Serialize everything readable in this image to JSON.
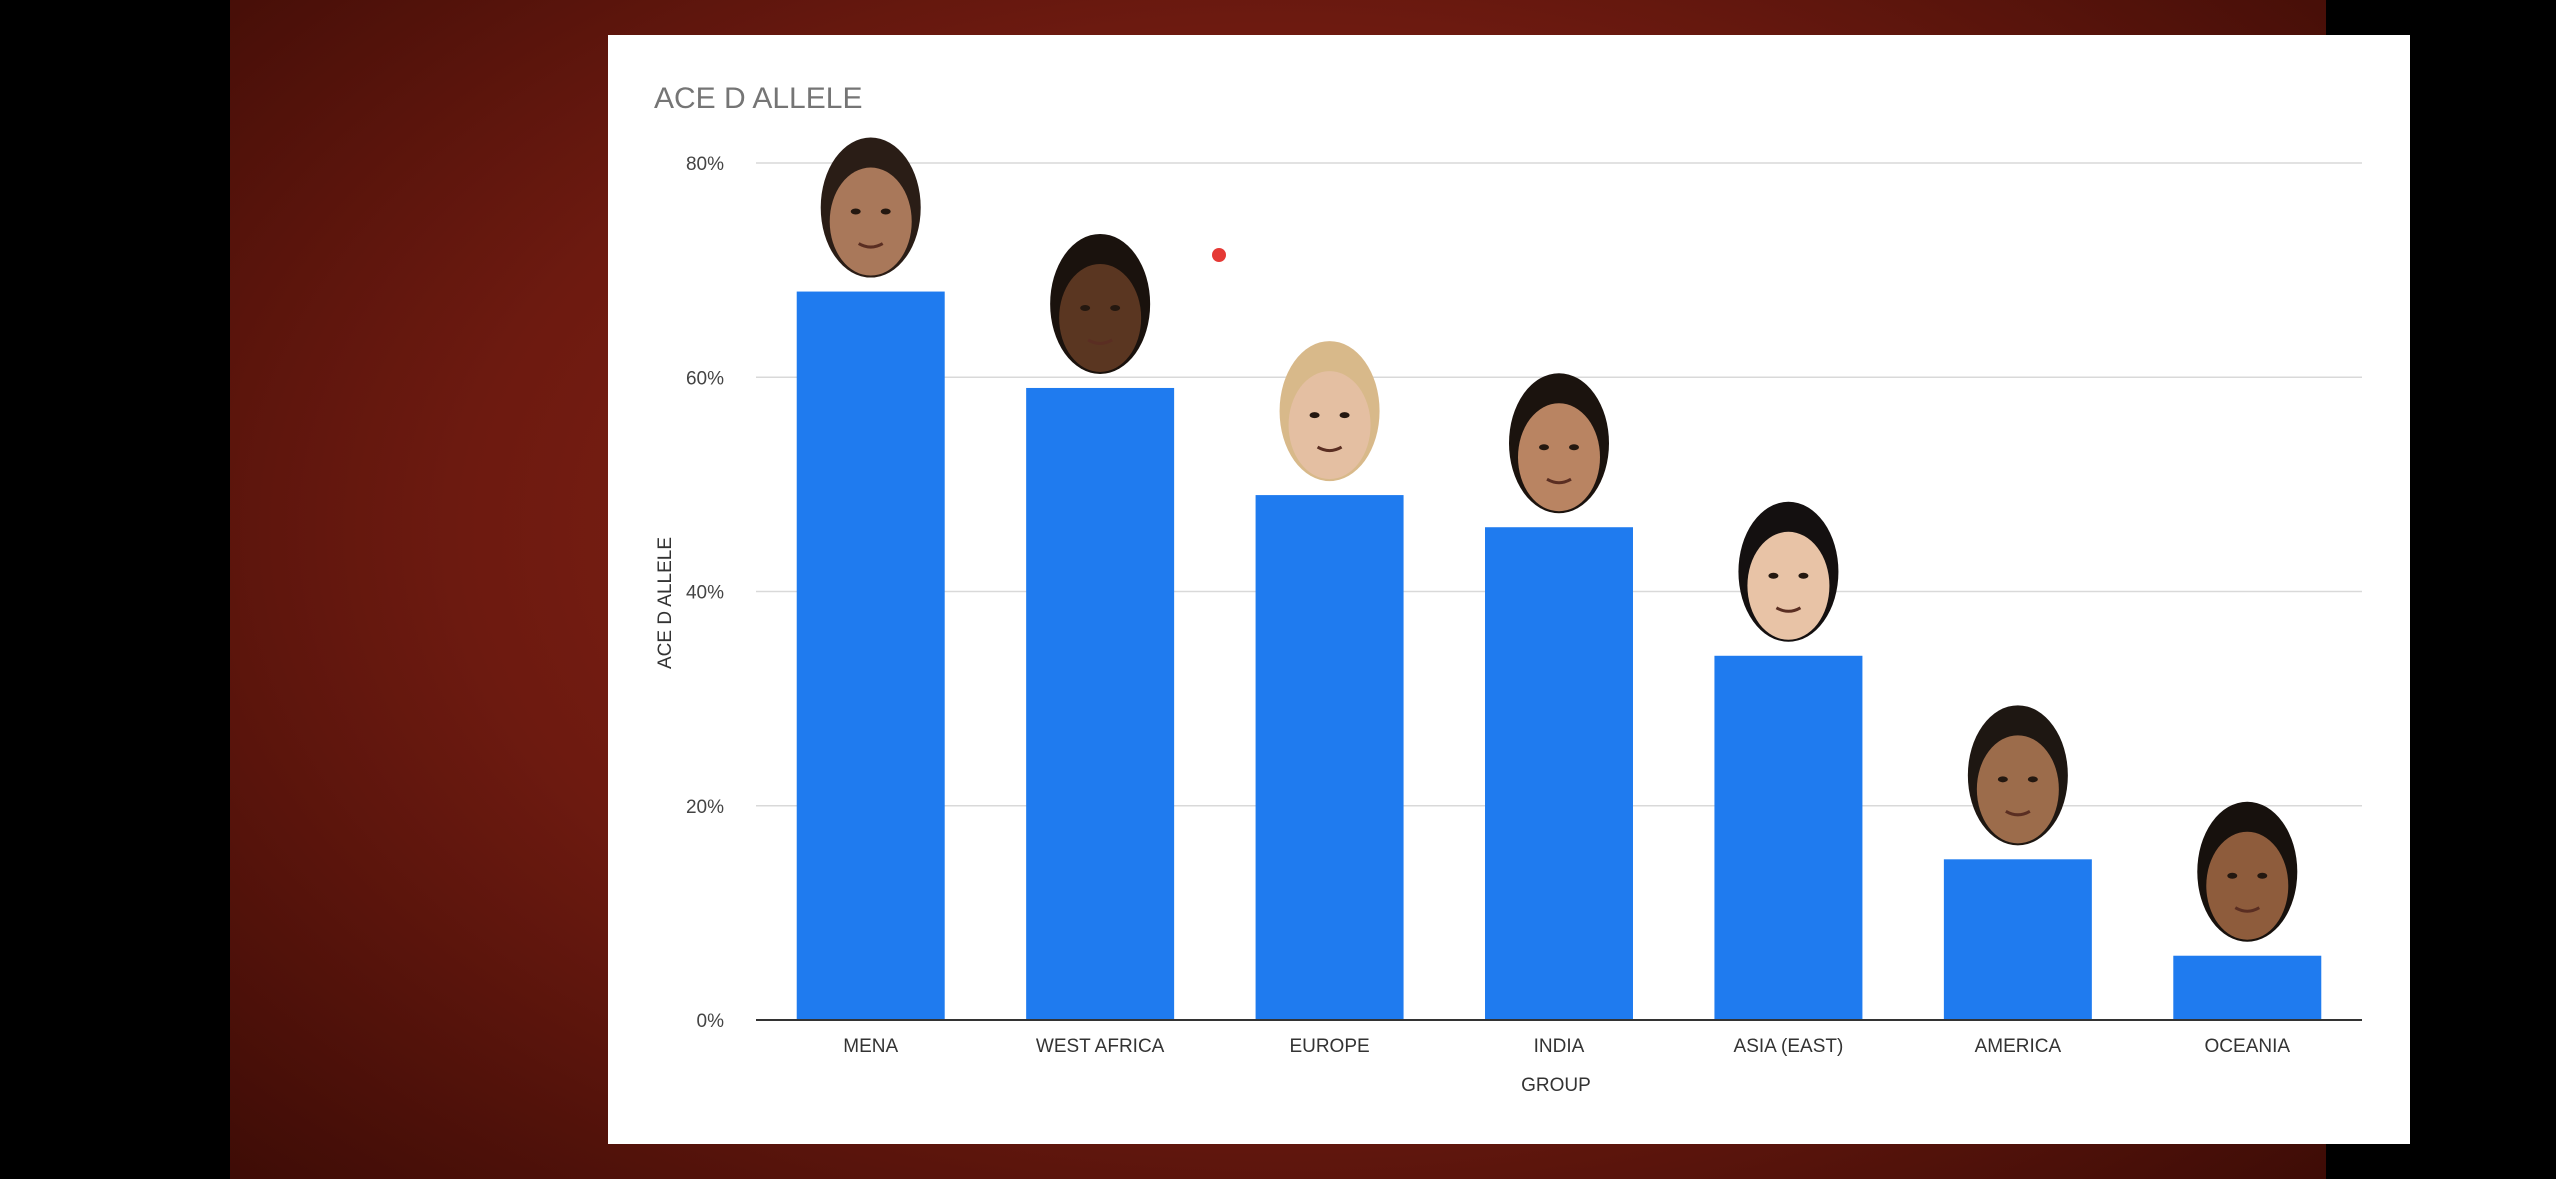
{
  "colors": {
    "bar": "#1f7bef",
    "grid": "#d9d9d9",
    "axis": "#333333",
    "marker": "#e53935"
  },
  "chart_data": {
    "type": "bar",
    "title": "ACE D ALLELE",
    "xlabel": "GROUP",
    "ylabel": "ACE D ALLELE",
    "categories": [
      "MENA",
      "WEST AFRICA",
      "EUROPE",
      "INDIA",
      "ASIA (EAST)",
      "AMERICA",
      "OCEANIA"
    ],
    "series": [
      {
        "values": [
          68,
          59,
          49,
          46,
          34,
          15,
          6
        ]
      }
    ],
    "ylim": [
      0,
      80
    ],
    "yticks": [
      "0%",
      "20%",
      "40%",
      "60%",
      "80%"
    ],
    "y_unit": "percent",
    "grid": true,
    "bar_images": [
      "face-icon",
      "face-icon",
      "face-icon",
      "face-icon",
      "face-icon",
      "face-icon",
      "face-icon"
    ]
  }
}
